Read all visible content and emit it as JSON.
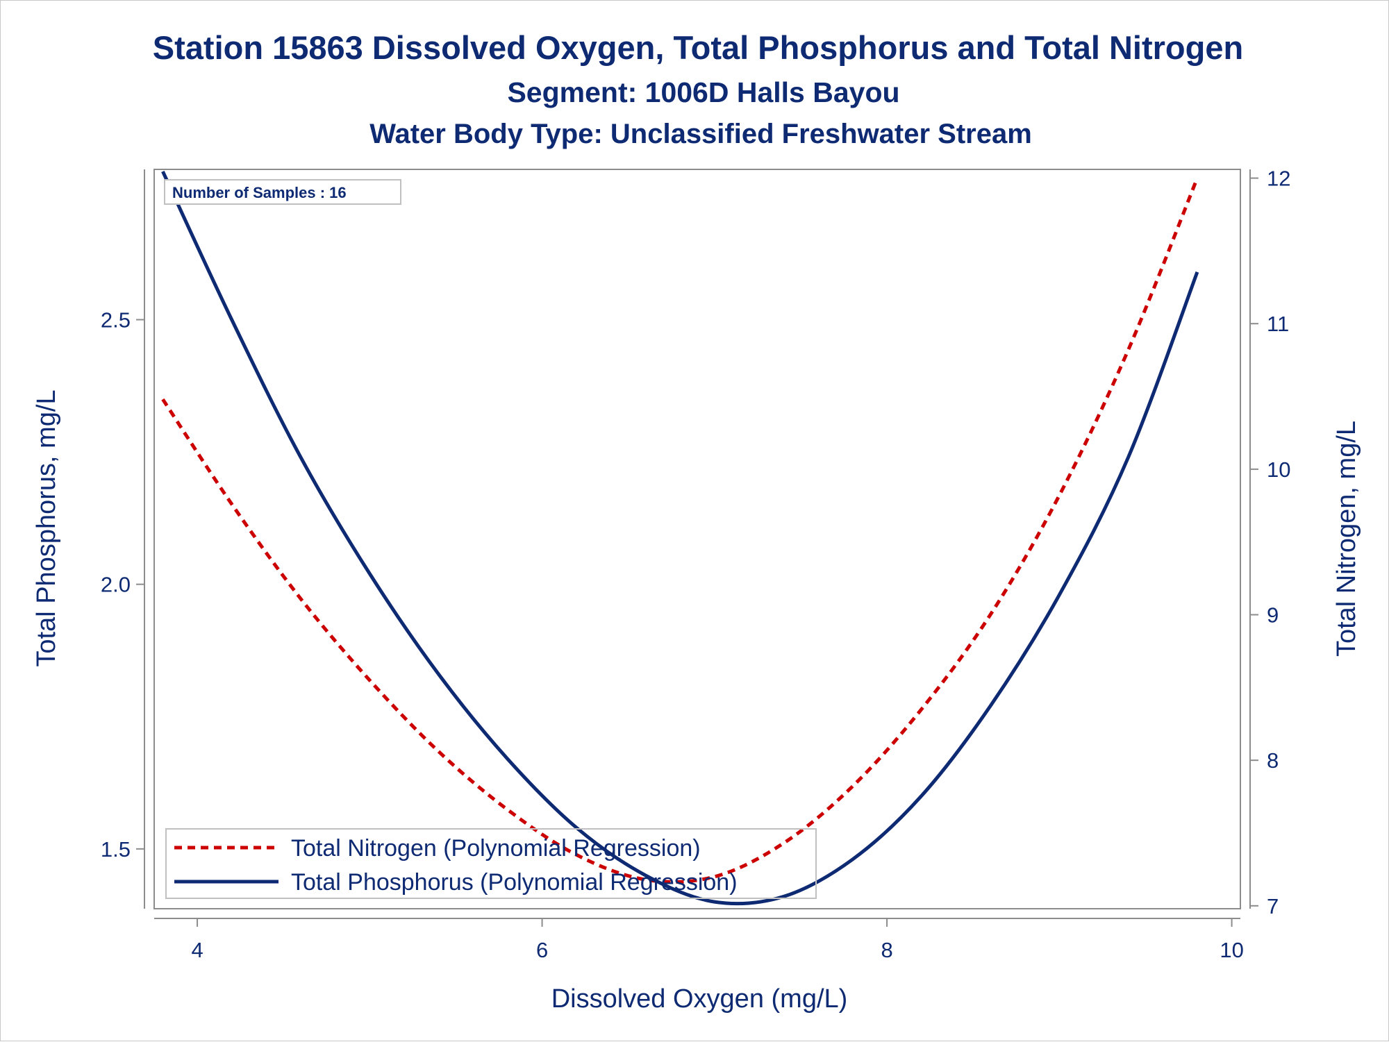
{
  "chart_data": {
    "type": "line",
    "title": "Station 15863  Dissolved Oxygen, Total Phosphorus and Total Nitrogen",
    "subtitle": "Segment: 1006D  Halls Bayou",
    "subtitle2": "Water Body Type: Unclassified Freshwater Stream",
    "xlabel": "Dissolved Oxygen (mg/L)",
    "ylabel_left": "Total Phosphorus, mg/L",
    "ylabel_right": "Total Nitrogen, mg/L",
    "xlim": [
      3.75,
      10.05
    ],
    "ylim_left": [
      1.387,
      2.784
    ],
    "ylim_right": [
      6.98,
      12.06
    ],
    "x_ticks": [
      4,
      6,
      8,
      10
    ],
    "y_left_ticks": [
      1.5,
      2.0,
      2.5
    ],
    "y_left_tick_labels": [
      "1.5",
      "2.0",
      "2.5"
    ],
    "y_right_ticks": [
      7,
      8,
      9,
      10,
      11,
      12
    ],
    "annotation": "Number of Samples : 16",
    "legend_position": "bottom-left",
    "grid": false,
    "series": [
      {
        "name": "Total Nitrogen (Polynomial Regression)",
        "axis": "right",
        "style": "dashed",
        "color": "#cc0000",
        "x": [
          3.8,
          4.2,
          4.6,
          5.0,
          5.4,
          5.8,
          6.2,
          6.6,
          7.0,
          7.4,
          7.8,
          8.2,
          8.6,
          9.0,
          9.4,
          9.8
        ],
        "values": [
          10.48,
          9.76,
          9.11,
          8.55,
          8.06,
          7.66,
          7.35,
          7.18,
          7.2,
          7.43,
          7.82,
          8.35,
          9.0,
          9.82,
          10.82,
          12.0
        ]
      },
      {
        "name": "Total Phosphorus (Polynomial Regression)",
        "axis": "left",
        "style": "solid",
        "color": "#0d2a73",
        "x": [
          3.8,
          4.2,
          4.6,
          5.0,
          5.4,
          5.8,
          6.2,
          6.6,
          7.0,
          7.4,
          7.8,
          8.2,
          8.6,
          9.0,
          9.4,
          9.8
        ],
        "values": [
          2.78,
          2.5,
          2.24,
          2.02,
          1.83,
          1.67,
          1.54,
          1.45,
          1.4,
          1.41,
          1.48,
          1.6,
          1.77,
          1.98,
          2.24,
          2.59
        ]
      }
    ]
  }
}
